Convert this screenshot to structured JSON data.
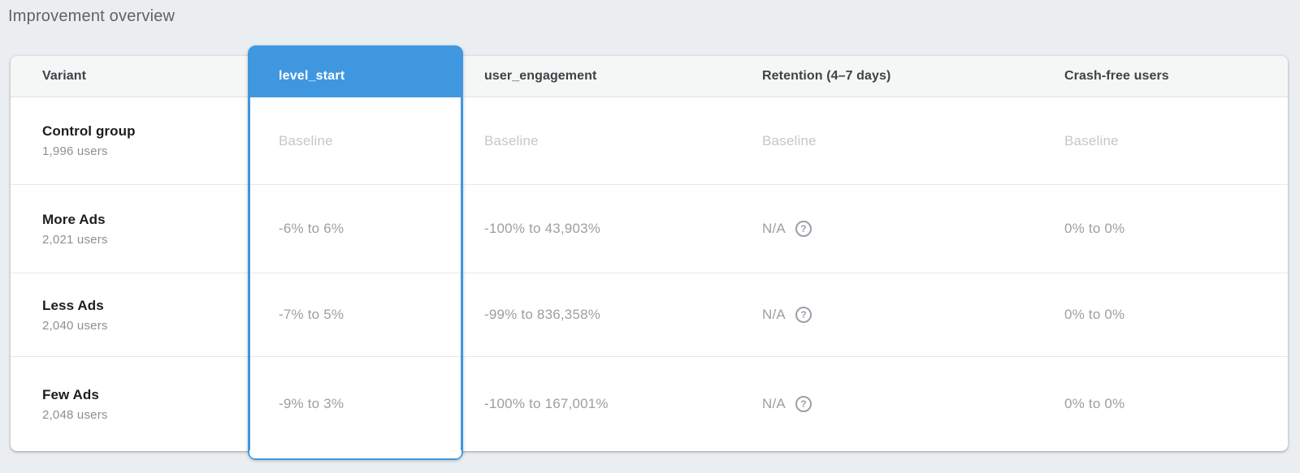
{
  "title": "Improvement overview",
  "theme": {
    "accent": "#3f97e0",
    "page_bg": "#ebeef1",
    "baseline_text": "#c4c7ca",
    "value_text": "#9b9fa3"
  },
  "table": {
    "columns": {
      "variant": "Variant",
      "level_start": "level_start",
      "user_engagement": "user_engagement",
      "retention": "Retention (4–7 days)",
      "crash_free": "Crash-free users"
    },
    "selected_column": "level_start",
    "help_icon_glyph": "?",
    "rows": [
      {
        "name": "Control group",
        "users": "1,996 users",
        "level_start": "Baseline",
        "user_engagement": "Baseline",
        "retention": "Baseline",
        "crash_free": "Baseline"
      },
      {
        "name": "More Ads",
        "users": "2,021 users",
        "level_start": "-6% to 6%",
        "user_engagement": "-100% to 43,903%",
        "retention": "N/A",
        "crash_free": "0% to 0%"
      },
      {
        "name": "Less Ads",
        "users": "2,040 users",
        "level_start": "-7% to 5%",
        "user_engagement": "-99% to 836,358%",
        "retention": "N/A",
        "crash_free": "0% to 0%"
      },
      {
        "name": "Few Ads",
        "users": "2,048 users",
        "level_start": "-9% to 3%",
        "user_engagement": "-100% to 167,001%",
        "retention": "N/A",
        "crash_free": "0% to 0%"
      }
    ]
  }
}
